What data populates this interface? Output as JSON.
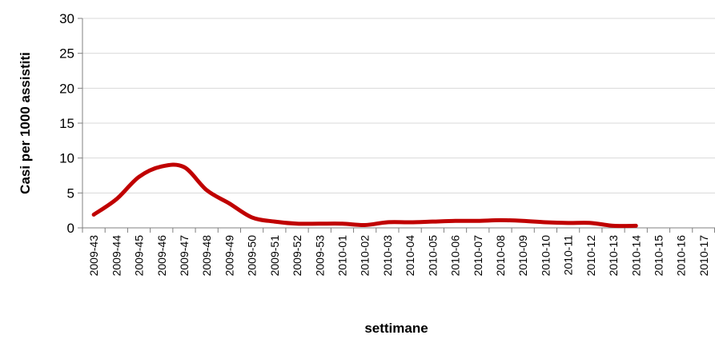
{
  "chart_data": {
    "type": "line",
    "title": "",
    "xlabel": "settimane",
    "ylabel": "Casi per 1000 assistiti",
    "ylim": [
      0,
      30
    ],
    "yticks": [
      0,
      5,
      10,
      15,
      20,
      25,
      30
    ],
    "grid": true,
    "legend": "none",
    "line_color": "#c00000",
    "grid_color": "#d9d9d9",
    "categories": [
      "2009-43",
      "2009-44",
      "2009-45",
      "2009-46",
      "2009-47",
      "2009-48",
      "2009-49",
      "2009-50",
      "2009-51",
      "2009-52",
      "2009-53",
      "2010-01",
      "2010-02",
      "2010-03",
      "2010-04",
      "2010-05",
      "2010-06",
      "2010-07",
      "2010-08",
      "2010-09",
      "2010-10",
      "2010-11",
      "2010-12",
      "2010-13",
      "2010-14",
      "2010-15",
      "2010-16",
      "2010-17"
    ],
    "series": [
      {
        "name": "",
        "values": [
          1.9,
          4.1,
          7.3,
          8.8,
          8.7,
          5.4,
          3.5,
          1.5,
          0.9,
          0.6,
          0.6,
          0.6,
          0.4,
          0.8,
          0.8,
          0.9,
          1.0,
          1.0,
          1.1,
          1.0,
          0.8,
          0.7,
          0.7,
          0.3,
          0.3,
          null,
          null,
          null
        ]
      }
    ]
  }
}
